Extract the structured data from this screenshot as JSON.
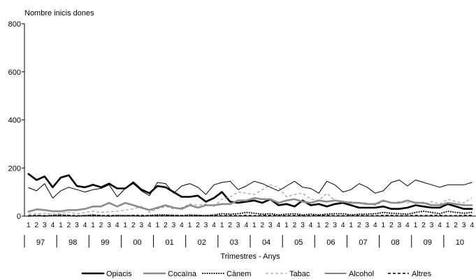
{
  "chart_data": {
    "type": "line",
    "ylabel": "Nombre inicis dones",
    "xlabel": "Trimestres - Anys",
    "ylim": [
      0,
      800
    ],
    "yticks": [
      0,
      200,
      400,
      600,
      800
    ],
    "grid": false,
    "legend_position": "bottom",
    "quarter_labels": [
      "1",
      "2",
      "3",
      "4"
    ],
    "years": [
      "97",
      "98",
      "99",
      "00",
      "01",
      "02",
      "03",
      "04",
      "05",
      "06",
      "07",
      "08",
      "09",
      "10"
    ],
    "series": [
      {
        "name": "Opiacis",
        "color": "#000000",
        "style": "thick",
        "values": [
          175,
          150,
          165,
          120,
          160,
          170,
          125,
          120,
          130,
          120,
          135,
          115,
          115,
          140,
          110,
          95,
          125,
          120,
          100,
          80,
          80,
          85,
          60,
          75,
          100,
          60,
          55,
          60,
          65,
          55,
          70,
          45,
          50,
          40,
          65,
          45,
          50,
          40,
          50,
          55,
          45,
          35,
          35,
          35,
          40,
          30,
          30,
          35,
          45,
          40,
          35,
          35,
          50,
          40,
          30,
          30
        ]
      },
      {
        "name": "Cocaïna",
        "color": "#8c8c8c",
        "style": "thick",
        "values": [
          18,
          28,
          25,
          20,
          20,
          25,
          25,
          30,
          40,
          40,
          55,
          40,
          55,
          45,
          35,
          25,
          35,
          45,
          35,
          30,
          45,
          35,
          45,
          45,
          50,
          50,
          65,
          65,
          75,
          70,
          70,
          55,
          65,
          70,
          60,
          55,
          65,
          60,
          65,
          60,
          55,
          55,
          50,
          50,
          65,
          55,
          55,
          65,
          55,
          55,
          45,
          45,
          55,
          50,
          45,
          45
        ]
      },
      {
        "name": "Cànem",
        "color": "#000000",
        "style": "dotted",
        "values": [
          0,
          2,
          0,
          3,
          5,
          2,
          0,
          2,
          5,
          2,
          0,
          3,
          2,
          2,
          0,
          3,
          5,
          5,
          3,
          2,
          5,
          3,
          2,
          5,
          10,
          8,
          10,
          15,
          12,
          8,
          10,
          5,
          8,
          10,
          5,
          8,
          5,
          8,
          10,
          10,
          5,
          8,
          8,
          10,
          15,
          12,
          10,
          8,
          15,
          20,
          15,
          10,
          20,
          15,
          12,
          15
        ]
      },
      {
        "name": "Tabac",
        "color": "#8c8c8c",
        "style": "dashed",
        "values": [
          8,
          10,
          12,
          8,
          12,
          15,
          10,
          15,
          20,
          15,
          18,
          20,
          25,
          30,
          40,
          15,
          30,
          40,
          30,
          35,
          50,
          45,
          50,
          40,
          70,
          80,
          100,
          95,
          90,
          110,
          130,
          120,
          80,
          90,
          95,
          70,
          65,
          95,
          65,
          55,
          60,
          55,
          55,
          45,
          60,
          55,
          60,
          55,
          60,
          50,
          60,
          50,
          70,
          60,
          55,
          75
        ]
      },
      {
        "name": "Alcohol",
        "color": "#000000",
        "style": "thin",
        "values": [
          118,
          105,
          135,
          75,
          105,
          120,
          110,
          100,
          110,
          115,
          130,
          80,
          115,
          135,
          105,
          85,
          140,
          135,
          95,
          125,
          135,
          120,
          90,
          130,
          140,
          145,
          110,
          125,
          145,
          135,
          120,
          105,
          125,
          145,
          120,
          115,
          95,
          145,
          130,
          100,
          110,
          135,
          120,
          95,
          105,
          140,
          150,
          125,
          150,
          140,
          130,
          120,
          130,
          130,
          130,
          140
        ]
      },
      {
        "name": "Altres",
        "color": "#000000",
        "style": "dashed",
        "values": [
          2,
          3,
          2,
          2,
          3,
          3,
          2,
          2,
          3,
          2,
          3,
          2,
          2,
          3,
          3,
          2,
          2,
          3,
          3,
          2,
          2,
          3,
          2,
          3,
          2,
          3,
          2,
          3,
          2,
          3,
          3,
          2,
          2,
          3,
          2,
          2,
          3,
          3,
          2,
          2,
          2,
          3,
          2,
          2,
          3,
          3,
          2,
          2,
          3,
          2,
          3,
          3,
          2,
          2,
          3,
          3
        ]
      }
    ]
  }
}
